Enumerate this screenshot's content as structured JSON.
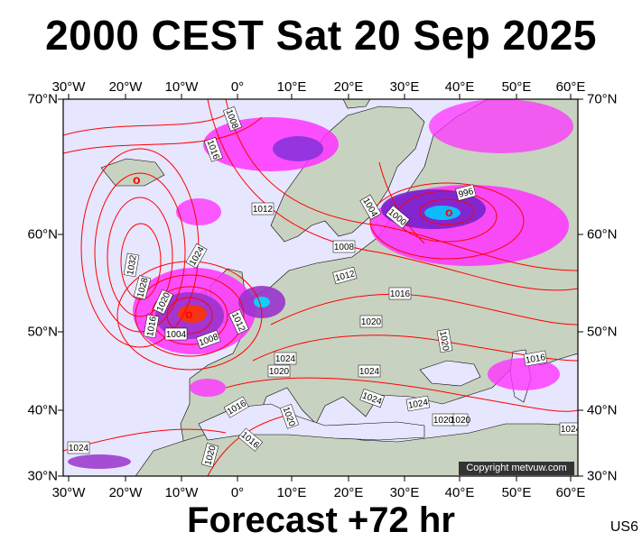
{
  "title": "2000 CEST Sat 20 Sep 2025",
  "footer": "Forecast +72 hr",
  "model_code": "US6",
  "copyright": "Copyright metvuw.com",
  "lon_labels": [
    "30°W",
    "20°W",
    "10°W",
    "0°",
    "10°E",
    "20°E",
    "30°E",
    "40°E",
    "50°E",
    "60°E"
  ],
  "lat_labels": [
    "70°N",
    "60°N",
    "50°N",
    "40°N",
    "30°N"
  ],
  "isobar_labels": [
    "1008",
    "1016",
    "1012",
    "996",
    "1000",
    "1004",
    "1008",
    "1012",
    "1016",
    "1020",
    "1024",
    "1032",
    "1028",
    "1020",
    "1016",
    "1004",
    "1008",
    "1012",
    "1024",
    "1020",
    "1024",
    "1024",
    "1020",
    "1016",
    "1024",
    "1016",
    "1024",
    "1020",
    "1020",
    "1016",
    "1020",
    "1024",
    "1020"
  ],
  "colors": {
    "background": "#e6e6ff",
    "land": "#c8d2c0",
    "isobar": "#ff0000",
    "precip_light": "#ff00ff",
    "precip_heavy": "#6600cc",
    "precip_core": "#00e0ff"
  }
}
